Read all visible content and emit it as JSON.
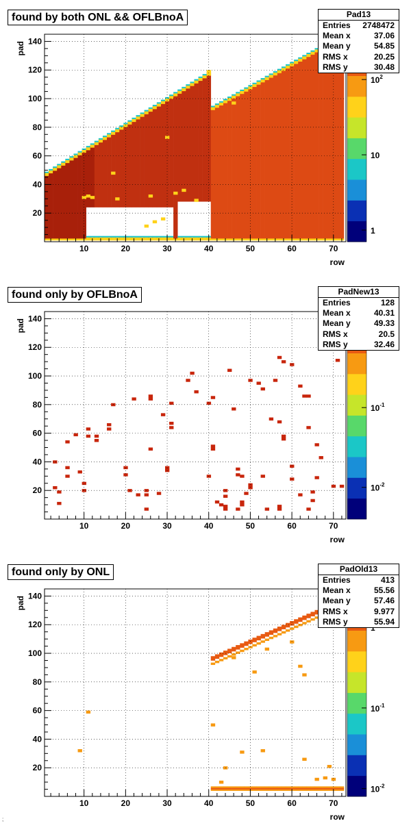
{
  "colors": {
    "frame": "#000000",
    "grid": "#000000",
    "background": "#ffffff"
  },
  "palette_stops": [
    "#00007a",
    "#0a30b4",
    "#1a8fd8",
    "#1bc7c7",
    "#58d86a",
    "#c6e52a",
    "#ffd21a",
    "#f79a12",
    "#e85a12",
    "#c8260c"
  ],
  "chart_data": [
    {
      "type": "heatmap",
      "title": "found by both ONL && OFLBnoA",
      "xlabel": "row",
      "ylabel": "pad",
      "xlim": [
        0.5,
        73
      ],
      "ylim": [
        0,
        145
      ],
      "xticks": [
        10,
        20,
        30,
        40,
        50,
        60,
        70
      ],
      "yticks": [
        20,
        40,
        60,
        80,
        100,
        120,
        140
      ],
      "grid": true,
      "z_scale": "log",
      "z_tick_labels": [
        {
          "v": 1,
          "t": "1"
        },
        {
          "v": 10,
          "t": "10"
        },
        {
          "v": 100,
          "t": "10^2"
        }
      ],
      "z_range": [
        0.7,
        400
      ],
      "stats": {
        "name": "Pad13",
        "rows": [
          [
            "Entries",
            "2748472"
          ],
          [
            "Mean x",
            "37.06"
          ],
          [
            "Mean y",
            "54.85"
          ],
          [
            "RMS x",
            "20.25"
          ],
          [
            "RMS y",
            "30.48"
          ]
        ]
      },
      "cell_pad_height": 2,
      "cell_hue_index": 9,
      "fill_ranges": [
        {
          "rows": [
            1,
            40
          ],
          "pad_start": 48,
          "pad_end": 118,
          "value": 250
        },
        {
          "rows": [
            41,
            72
          ],
          "pad_start": 94,
          "pad_end": 144,
          "value": 200
        }
      ],
      "hole_ranges": [
        {
          "rows": [
            11,
            31
          ],
          "pad_from": 3,
          "pad_to": 24
        },
        {
          "rows": [
            33,
            40
          ],
          "pad_from": 3,
          "pad_to": 28
        }
      ],
      "edge_cells": [
        [
          10,
          30
        ],
        [
          11,
          31
        ],
        [
          12,
          30
        ],
        [
          17,
          47
        ],
        [
          18,
          29
        ],
        [
          25,
          10
        ],
        [
          26,
          31
        ],
        [
          27,
          13
        ],
        [
          29,
          15
        ],
        [
          30,
          72
        ],
        [
          32,
          33
        ],
        [
          34,
          35
        ],
        [
          37,
          28
        ],
        [
          40,
          118
        ],
        [
          46,
          96
        ]
      ]
    },
    {
      "type": "heatmap",
      "title": "found only by OFLBnoA",
      "xlabel": "row",
      "ylabel": "pad",
      "xlim": [
        0.5,
        73
      ],
      "ylim": [
        0,
        145
      ],
      "xticks": [
        10,
        20,
        30,
        40,
        50,
        60,
        70
      ],
      "yticks": [
        20,
        40,
        60,
        80,
        100,
        120,
        140
      ],
      "grid": true,
      "z_scale": "log",
      "z_tick_labels": [
        {
          "v": 0.01,
          "t": "10^-2"
        },
        {
          "v": 0.1,
          "t": "10^-1"
        }
      ],
      "z_range": [
        0.004,
        1.6
      ],
      "stats": {
        "name": "PadNew13",
        "rows": [
          [
            "Entries",
            "128"
          ],
          [
            "Mean x",
            "40.31"
          ],
          [
            "Mean y",
            "49.33"
          ],
          [
            "RMS x",
            "20.5"
          ],
          [
            "RMS y",
            "32.46"
          ]
        ]
      },
      "cells": [
        [
          3,
          39
        ],
        [
          3,
          21
        ],
        [
          4,
          18
        ],
        [
          4,
          10
        ],
        [
          6,
          53
        ],
        [
          6,
          35
        ],
        [
          6,
          29
        ],
        [
          8,
          58
        ],
        [
          9,
          32
        ],
        [
          10,
          24
        ],
        [
          10,
          19
        ],
        [
          11,
          62
        ],
        [
          11,
          57
        ],
        [
          13,
          54
        ],
        [
          13,
          57
        ],
        [
          16,
          65
        ],
        [
          16,
          62
        ],
        [
          17,
          79
        ],
        [
          20,
          35
        ],
        [
          20,
          30
        ],
        [
          21,
          19
        ],
        [
          22,
          83
        ],
        [
          23,
          16
        ],
        [
          25,
          19
        ],
        [
          25,
          16
        ],
        [
          25,
          6
        ],
        [
          26,
          85
        ],
        [
          26,
          83
        ],
        [
          26,
          48
        ],
        [
          28,
          17
        ],
        [
          29,
          72
        ],
        [
          30,
          33
        ],
        [
          30,
          35
        ],
        [
          31,
          80
        ],
        [
          31,
          66
        ],
        [
          31,
          63
        ],
        [
          35,
          96
        ],
        [
          36,
          101
        ],
        [
          37,
          88
        ],
        [
          40,
          80
        ],
        [
          40,
          29
        ],
        [
          41,
          84
        ],
        [
          41,
          50
        ],
        [
          41,
          48
        ],
        [
          42,
          11
        ],
        [
          43,
          9
        ],
        [
          44,
          19
        ],
        [
          44,
          15
        ],
        [
          44,
          6
        ],
        [
          44,
          8
        ],
        [
          45,
          103
        ],
        [
          46,
          76
        ],
        [
          47,
          30
        ],
        [
          47,
          34
        ],
        [
          47,
          6
        ],
        [
          48,
          29
        ],
        [
          48,
          9
        ],
        [
          48,
          11
        ],
        [
          49,
          17
        ],
        [
          50,
          96
        ],
        [
          50,
          23
        ],
        [
          50,
          21
        ],
        [
          52,
          94
        ],
        [
          53,
          90
        ],
        [
          53,
          29
        ],
        [
          54,
          6
        ],
        [
          55,
          69
        ],
        [
          56,
          96
        ],
        [
          57,
          112
        ],
        [
          57,
          67
        ],
        [
          57,
          6
        ],
        [
          57,
          8
        ],
        [
          58,
          109
        ],
        [
          58,
          57
        ],
        [
          58,
          55
        ],
        [
          60,
          107
        ],
        [
          60,
          36
        ],
        [
          60,
          27
        ],
        [
          62,
          92
        ],
        [
          62,
          16
        ],
        [
          63,
          85
        ],
        [
          64,
          85
        ],
        [
          64,
          63
        ],
        [
          64,
          6
        ],
        [
          65,
          18
        ],
        [
          65,
          12
        ],
        [
          66,
          51
        ],
        [
          66,
          28
        ],
        [
          67,
          42
        ],
        [
          70,
          22
        ],
        [
          71,
          110
        ],
        [
          72,
          22
        ]
      ],
      "cell_pad_height": 2,
      "cell_hue_index": 9
    },
    {
      "type": "heatmap",
      "title": "found only by ONL",
      "xlabel": "row",
      "ylabel": "pad",
      "xlim": [
        0.5,
        73
      ],
      "ylim": [
        0,
        145
      ],
      "xticks": [
        10,
        20,
        30,
        40,
        50,
        60,
        70
      ],
      "yticks": [
        20,
        40,
        60,
        80,
        100,
        120,
        140
      ],
      "grid": true,
      "z_scale": "log",
      "z_tick_labels": [
        {
          "v": 0.01,
          "t": "10^-2"
        },
        {
          "v": 0.1,
          "t": "10^-1"
        },
        {
          "v": 1,
          "t": "1"
        }
      ],
      "z_range": [
        0.008,
        3
      ],
      "stats": {
        "name": "PadOld13",
        "rows": [
          [
            "Entries",
            "413"
          ],
          [
            "Mean x",
            "55.56"
          ],
          [
            "Mean y",
            "57.46"
          ],
          [
            "RMS x",
            "9.977"
          ],
          [
            "RMS y",
            "55.94"
          ]
        ]
      },
      "diagonal_band": {
        "rows": [
          41,
          72
        ],
        "pad_start": 95,
        "pad_end": 135,
        "thickness": 3
      },
      "bottom_band": {
        "rows": [
          41,
          72
        ],
        "pads": [
          4,
          5,
          6
        ]
      },
      "cells": [
        [
          11,
          58
        ],
        [
          9,
          31
        ],
        [
          41,
          49
        ],
        [
          43,
          9
        ],
        [
          44,
          19
        ],
        [
          46,
          96
        ],
        [
          48,
          30
        ],
        [
          51,
          86
        ],
        [
          53,
          31
        ],
        [
          54,
          102
        ],
        [
          60,
          107
        ],
        [
          62,
          90
        ],
        [
          63,
          84
        ],
        [
          63,
          25
        ],
        [
          66,
          11
        ],
        [
          69,
          20
        ],
        [
          70,
          11
        ],
        [
          68,
          12
        ]
      ],
      "cell_pad_height": 2,
      "cell_hue_index": 7
    }
  ],
  "corner_mark": ";"
}
